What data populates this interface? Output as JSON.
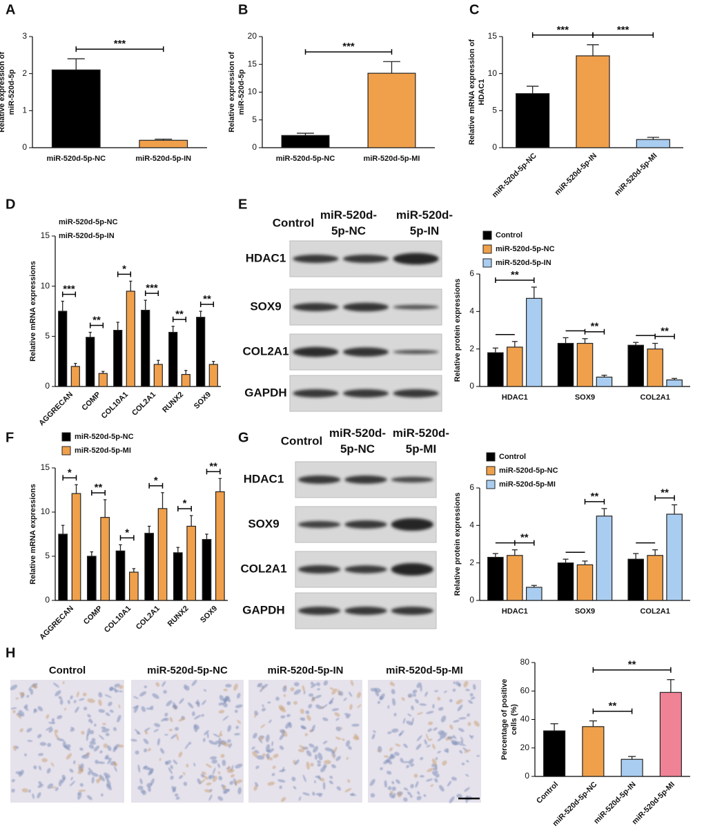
{
  "chart_data": [
    {
      "type": "bar",
      "panel": "A",
      "ylabel": [
        "Relative expression of",
        "miR-520d-5p"
      ],
      "categories": [
        "miR-520d-5p-NC",
        "miR-520d-5p-IN"
      ],
      "values": [
        2.1,
        0.2
      ],
      "errors": [
        0.3,
        0.03
      ],
      "colors": [
        "#000000",
        "#f0a04b"
      ],
      "ylim": [
        0,
        3
      ],
      "yticks": [
        0,
        1,
        2,
        3
      ],
      "brackets": [
        {
          "bars": [
            0,
            1
          ],
          "text": "***"
        }
      ]
    },
    {
      "type": "bar",
      "panel": "B",
      "ylabel": [
        "Relative expression of",
        "miR-520d-5p"
      ],
      "categories": [
        "miR-520d-5p-NC",
        "miR-520d-5p-MI"
      ],
      "values": [
        2.2,
        13.4
      ],
      "errors": [
        0.4,
        2.1
      ],
      "colors": [
        "#000000",
        "#f0a04b"
      ],
      "ylim": [
        0,
        20
      ],
      "yticks": [
        0,
        5,
        10,
        15,
        20
      ],
      "brackets": [
        {
          "bars": [
            0,
            1
          ],
          "text": "***"
        }
      ]
    },
    {
      "type": "bar",
      "panel": "C",
      "ylabel": [
        "Relative mRNA expression of",
        "HDAC1"
      ],
      "categories": [
        "miR-520d-5p-NC",
        "miR-520d-5p-IN",
        "miR-520d-5p-MI"
      ],
      "values": [
        7.3,
        12.4,
        1.1
      ],
      "errors": [
        1.0,
        1.5,
        0.3
      ],
      "colors": [
        "#000000",
        "#f0a04b",
        "#a9cdf0"
      ],
      "ylim": [
        0,
        15
      ],
      "yticks": [
        0,
        5,
        10,
        15
      ],
      "xtick_rotation": 45,
      "brackets": [
        {
          "bars": [
            0,
            1
          ],
          "text": "***"
        },
        {
          "bars": [
            1,
            2
          ],
          "text": "***"
        }
      ]
    },
    {
      "type": "bar",
      "panel": "D",
      "ylabel": [
        "Relative mRNA expressions"
      ],
      "categories": [
        "AGGRECAN",
        "COMP",
        "COL10A1",
        "COL2A1",
        "RUNX2",
        "SOX9"
      ],
      "series": [
        {
          "name": "miR-520d-5p-NC",
          "color": "#000000",
          "values": [
            7.5,
            4.9,
            5.6,
            7.6,
            5.4,
            6.9
          ],
          "errors": [
            1.0,
            0.5,
            0.8,
            1.0,
            0.6,
            0.6
          ]
        },
        {
          "name": "miR-520d-5p-IN",
          "color": "#f0a04b",
          "values": [
            2.0,
            1.3,
            9.5,
            2.2,
            1.2,
            2.2
          ],
          "errors": [
            0.3,
            0.2,
            1.0,
            0.4,
            0.4,
            0.3
          ]
        }
      ],
      "legend_swatches": false,
      "ylim": [
        0,
        15
      ],
      "yticks": [
        0,
        5,
        10,
        15
      ],
      "xtick_rotation": 45,
      "brackets": [
        {
          "category": 0,
          "series": [
            0,
            1
          ],
          "text": "***"
        },
        {
          "category": 1,
          "series": [
            0,
            1
          ],
          "text": "**"
        },
        {
          "category": 2,
          "series": [
            0,
            1
          ],
          "text": "*"
        },
        {
          "category": 3,
          "series": [
            0,
            1
          ],
          "text": "***"
        },
        {
          "category": 4,
          "series": [
            0,
            1
          ],
          "text": "**"
        },
        {
          "category": 5,
          "series": [
            0,
            1
          ],
          "text": "**"
        }
      ]
    },
    {
      "type": "bar",
      "ylabel": [
        "Relative protein expressions"
      ],
      "categories": [
        "HDAC1",
        "SOX9",
        "COL2A1"
      ],
      "series": [
        {
          "name": "Control",
          "color": "#000000",
          "values": [
            1.8,
            2.3,
            2.2
          ],
          "errors": [
            0.25,
            0.3,
            0.15
          ]
        },
        {
          "name": "miR-520d-5p-NC",
          "color": "#f0a04b",
          "values": [
            2.1,
            2.3,
            2.0
          ],
          "errors": [
            0.3,
            0.25,
            0.3
          ]
        },
        {
          "name": "miR-520d-5p-IN",
          "color": "#a9cdf0",
          "values": [
            4.7,
            0.5,
            0.35
          ],
          "errors": [
            0.6,
            0.1,
            0.08
          ]
        }
      ],
      "legend_swatches": true,
      "ylim": [
        0,
        6
      ],
      "yticks": [
        0,
        2,
        4,
        6
      ],
      "brackets": [
        {
          "category": 0,
          "series": [
            0,
            1
          ]
        },
        {
          "category": 0,
          "series": [
            0,
            2
          ],
          "text": "**"
        },
        {
          "category": 1,
          "series": [
            0,
            1
          ]
        },
        {
          "category": 1,
          "series": [
            1,
            2
          ],
          "text": "**"
        },
        {
          "category": 2,
          "series": [
            0,
            1
          ]
        },
        {
          "category": 2,
          "series": [
            1,
            2
          ],
          "text": "**"
        }
      ]
    },
    {
      "type": "bar",
      "panel": "F",
      "ylabel": [
        "Relative mRNA expressions"
      ],
      "categories": [
        "AGGRECAN",
        "COMP",
        "COL10A1",
        "COL2A1",
        "RUNX2",
        "SOX9"
      ],
      "series": [
        {
          "name": "miR-520d-5p-NC",
          "color": "#000000",
          "values": [
            7.5,
            5.0,
            5.6,
            7.6,
            5.4,
            6.9
          ],
          "errors": [
            1.0,
            0.5,
            0.7,
            0.8,
            0.6,
            0.6
          ]
        },
        {
          "name": "miR-520d-5p-MI",
          "color": "#f0a04b",
          "values": [
            12.1,
            9.4,
            3.2,
            10.4,
            8.4,
            12.3
          ],
          "errors": [
            1.0,
            2.0,
            0.4,
            1.8,
            1.2,
            1.5
          ]
        }
      ],
      "legend_swatches": true,
      "ylim": [
        0,
        15
      ],
      "yticks": [
        0,
        5,
        10,
        15
      ],
      "xtick_rotation": 45,
      "brackets": [
        {
          "category": 0,
          "series": [
            0,
            1
          ],
          "text": "*"
        },
        {
          "category": 1,
          "series": [
            0,
            1
          ],
          "text": "**"
        },
        {
          "category": 2,
          "series": [
            0,
            1
          ],
          "text": "*"
        },
        {
          "category": 3,
          "series": [
            0,
            1
          ],
          "text": "*"
        },
        {
          "category": 4,
          "series": [
            0,
            1
          ],
          "text": "*"
        },
        {
          "category": 5,
          "series": [
            0,
            1
          ],
          "text": "**"
        }
      ]
    },
    {
      "type": "bar",
      "ylabel": [
        "Relative protein expressions"
      ],
      "categories": [
        "HDAC1",
        "SOX9",
        "COL2A1"
      ],
      "series": [
        {
          "name": "Control",
          "color": "#000000",
          "values": [
            2.3,
            2.0,
            2.2
          ],
          "errors": [
            0.2,
            0.2,
            0.3
          ]
        },
        {
          "name": "miR-520d-5p-NC",
          "color": "#f0a04b",
          "values": [
            2.4,
            1.9,
            2.4
          ],
          "errors": [
            0.3,
            0.2,
            0.3
          ]
        },
        {
          "name": "miR-520d-5p-MI",
          "color": "#a9cdf0",
          "values": [
            0.7,
            4.5,
            4.6
          ],
          "errors": [
            0.1,
            0.4,
            0.5
          ]
        }
      ],
      "legend_swatches": true,
      "ylim": [
        0,
        6
      ],
      "yticks": [
        0,
        2,
        4,
        6
      ],
      "brackets": [
        {
          "category": 0,
          "series": [
            0,
            1
          ]
        },
        {
          "category": 0,
          "series": [
            1,
            2
          ],
          "text": "**"
        },
        {
          "category": 1,
          "series": [
            0,
            1
          ]
        },
        {
          "category": 1,
          "series": [
            1,
            2
          ],
          "text": "**"
        },
        {
          "category": 2,
          "series": [
            0,
            1
          ]
        },
        {
          "category": 2,
          "series": [
            1,
            2
          ],
          "text": "**"
        }
      ]
    },
    {
      "type": "bar",
      "ylabel": [
        "Percentage of positive",
        "cells (%)"
      ],
      "categories": [
        "Control",
        "miR-520d-5p-NC",
        "miR-520d-5p-IN",
        "miR-520d-5p-MI"
      ],
      "values": [
        32,
        35,
        12,
        59
      ],
      "errors": [
        5,
        4,
        2,
        9
      ],
      "colors": [
        "#000000",
        "#f0a04b",
        "#a9cdf0",
        "#f08296"
      ],
      "ylim": [
        0,
        80
      ],
      "yticks": [
        0,
        20,
        40,
        60,
        80
      ],
      "xtick_rotation": 45,
      "brackets": [
        {
          "bars": [
            1,
            2
          ],
          "text": "**"
        },
        {
          "bars": [
            1,
            3
          ],
          "text": "**"
        }
      ]
    }
  ],
  "blots": [
    {
      "panel": "E",
      "columns": [
        [
          "Control"
        ],
        [
          "miR-520d-",
          "5p-NC"
        ],
        [
          "miR-520d-",
          "5p-IN"
        ]
      ],
      "rows": [
        "HDAC1",
        "SOX9",
        "COL2A1",
        "GAPDH"
      ]
    },
    {
      "panel": "G",
      "columns": [
        [
          "Control"
        ],
        [
          "miR-520d-",
          "5p-NC"
        ],
        [
          "miR-520d-",
          "5p-MI"
        ]
      ],
      "rows": [
        "HDAC1",
        "SOX9",
        "COL2A1",
        "GAPDH"
      ]
    }
  ],
  "micrographs": {
    "panel": "H",
    "titles": [
      "Control",
      "miR-520d-5p-NC",
      "miR-520d-5p-IN",
      "miR-520d-5p-MI"
    ]
  }
}
